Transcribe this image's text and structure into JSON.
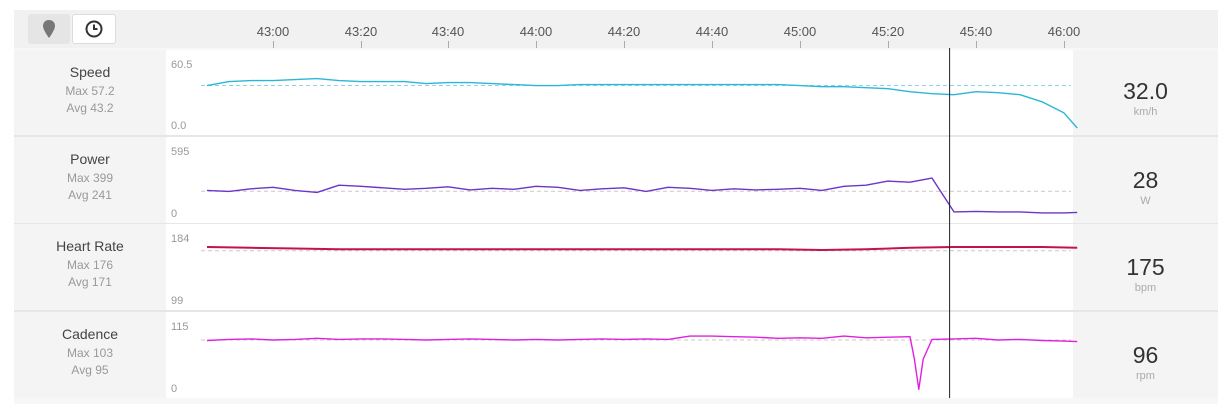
{
  "toolbar": {
    "buttons": [
      {
        "icon": "map-pin-icon"
      },
      {
        "icon": "clock-icon",
        "active": true
      }
    ]
  },
  "time_axis": {
    "ticks": [
      "43:00",
      "43:20",
      "43:40",
      "44:00",
      "44:20",
      "44:40",
      "45:00",
      "45:20",
      "45:40",
      "46:00"
    ]
  },
  "cursor_time_sec": 2734,
  "metrics": [
    {
      "name": "Speed",
      "max": "Max 57.2",
      "avg": "Avg 43.2",
      "ytop": "60.5",
      "ybottom": "0.0",
      "value": "32.0",
      "unit": "km/h",
      "color": "#2bb6d6"
    },
    {
      "name": "Power",
      "max": "Max 399",
      "avg": "Avg 241",
      "ytop": "595",
      "ybottom": "0",
      "value": "28",
      "unit": "W",
      "color": "#6b35c8"
    },
    {
      "name": "Heart Rate",
      "max": "Max 176",
      "avg": "Avg 171",
      "ytop": "184",
      "ybottom": "99",
      "value": "175",
      "unit": "bpm",
      "color": "#c4124f"
    },
    {
      "name": "Cadence",
      "max": "Max 103",
      "avg": "Avg 95",
      "ytop": "115",
      "ybottom": "0",
      "value": "96",
      "unit": "rpm",
      "color": "#e020e0"
    }
  ],
  "chart_data": [
    {
      "type": "line",
      "title": "Speed",
      "xlabel": "",
      "ylabel": "km/h",
      "xlim": [
        2565,
        2765
      ],
      "ylim": [
        0,
        60.5
      ],
      "avg_line": 43.2,
      "series": [
        {
          "color": "#2bb6d6",
          "x": [
            2565,
            2570,
            2575,
            2580,
            2585,
            2590,
            2595,
            2600,
            2605,
            2610,
            2615,
            2620,
            2625,
            2630,
            2635,
            2640,
            2645,
            2650,
            2655,
            2660,
            2665,
            2670,
            2675,
            2680,
            2685,
            2690,
            2695,
            2700,
            2705,
            2710,
            2715,
            2720,
            2725,
            2730,
            2735,
            2740,
            2745,
            2750,
            2755,
            2760,
            2763
          ],
          "values": [
            43,
            47,
            48,
            48,
            49,
            50,
            48,
            47,
            47,
            47,
            45,
            46,
            46,
            45,
            44,
            43,
            43,
            44,
            44,
            44,
            44,
            44,
            44,
            44,
            44,
            44,
            44,
            43,
            42,
            42,
            41,
            40,
            37,
            35,
            34,
            37,
            36,
            34,
            27,
            16,
            1
          ]
        }
      ]
    },
    {
      "type": "line",
      "title": "Power",
      "xlabel": "",
      "ylabel": "W",
      "xlim": [
        2565,
        2765
      ],
      "ylim": [
        0,
        595
      ],
      "avg_line": 241,
      "series": [
        {
          "color": "#6b35c8",
          "x": [
            2565,
            2570,
            2575,
            2580,
            2585,
            2590,
            2595,
            2600,
            2605,
            2610,
            2615,
            2620,
            2625,
            2630,
            2635,
            2640,
            2645,
            2650,
            2655,
            2660,
            2665,
            2670,
            2675,
            2680,
            2685,
            2690,
            2695,
            2700,
            2705,
            2710,
            2715,
            2720,
            2725,
            2730,
            2735,
            2740,
            2745,
            2750,
            2755,
            2760,
            2763
          ],
          "values": [
            250,
            240,
            265,
            280,
            250,
            230,
            300,
            290,
            275,
            260,
            270,
            285,
            255,
            270,
            260,
            290,
            280,
            250,
            265,
            275,
            240,
            280,
            270,
            250,
            265,
            255,
            260,
            270,
            250,
            290,
            300,
            340,
            330,
            370,
            40,
            45,
            40,
            40,
            30,
            30,
            35
          ]
        }
      ]
    },
    {
      "type": "line",
      "title": "Heart Rate",
      "xlabel": "",
      "ylabel": "bpm",
      "xlim": [
        2565,
        2765
      ],
      "ylim": [
        99,
        184
      ],
      "avg_line": 171,
      "series": [
        {
          "color": "#c4124f",
          "x": [
            2565,
            2575,
            2585,
            2595,
            2605,
            2615,
            2625,
            2635,
            2645,
            2655,
            2665,
            2675,
            2685,
            2695,
            2705,
            2715,
            2725,
            2735,
            2745,
            2755,
            2763
          ],
          "values": [
            176,
            175,
            174,
            173,
            173,
            173,
            173,
            173,
            173,
            173,
            173,
            173,
            173,
            173,
            172,
            173,
            175,
            176,
            176,
            176,
            175
          ]
        }
      ]
    },
    {
      "type": "line",
      "title": "Cadence",
      "xlabel": "",
      "ylabel": "rpm",
      "xlim": [
        2565,
        2765
      ],
      "ylim": [
        0,
        115
      ],
      "avg_line": 95,
      "series": [
        {
          "color": "#e020e0",
          "x": [
            2565,
            2570,
            2575,
            2580,
            2585,
            2590,
            2595,
            2600,
            2605,
            2610,
            2615,
            2620,
            2625,
            2630,
            2635,
            2640,
            2645,
            2650,
            2655,
            2660,
            2665,
            2670,
            2675,
            2680,
            2685,
            2690,
            2695,
            2700,
            2705,
            2710,
            2715,
            2720,
            2725,
            2726,
            2727,
            2728,
            2730,
            2735,
            2740,
            2745,
            2750,
            2755,
            2760,
            2763
          ],
          "values": [
            94,
            96,
            97,
            95,
            96,
            98,
            96,
            97,
            97,
            96,
            95,
            96,
            97,
            96,
            95,
            96,
            95,
            96,
            97,
            96,
            97,
            96,
            102,
            102,
            101,
            100,
            98,
            99,
            98,
            102,
            99,
            100,
            101,
            60,
            5,
            60,
            96,
            97,
            98,
            95,
            96,
            94,
            93,
            92
          ]
        }
      ]
    }
  ]
}
